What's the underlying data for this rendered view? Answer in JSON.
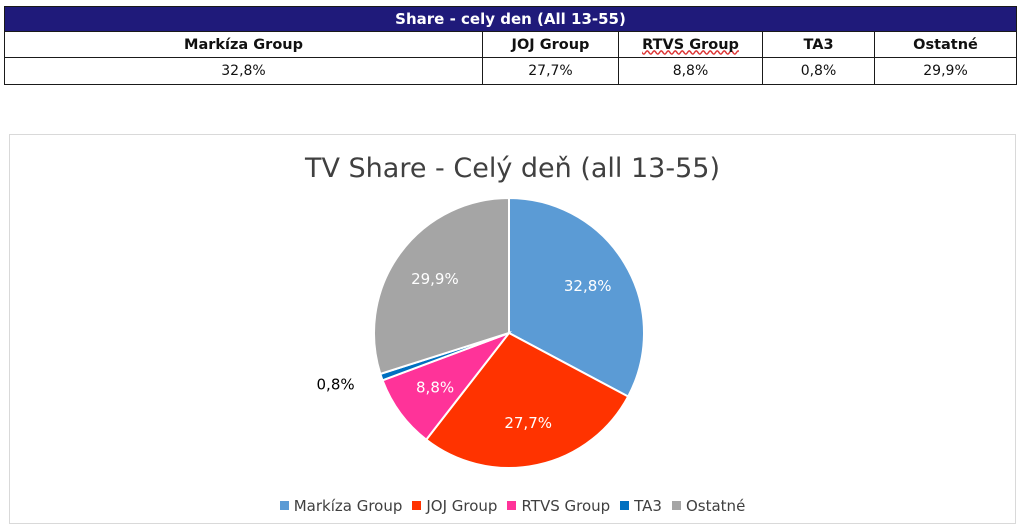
{
  "table": {
    "title": "Share - cely den (All 13-55)",
    "title_color": "#1f1a7a",
    "headers": [
      "Markíza Group",
      "JOJ Group",
      "RTVS Group",
      "TA3",
      "Ostatné"
    ],
    "values": [
      "32,8%",
      "27,7%",
      "8,8%",
      "0,8%",
      "29,9%"
    ]
  },
  "chart_data": {
    "type": "pie",
    "title": "TV Share - Celý deň (all 13-55)",
    "categories": [
      "Markíza Group",
      "JOJ Group",
      "RTVS Group",
      "TA3",
      "Ostatné"
    ],
    "values": [
      32.8,
      27.7,
      8.8,
      0.8,
      29.9
    ],
    "labels": [
      "32,8%",
      "27,7%",
      "8,8%",
      "0,8%",
      "29,9%"
    ],
    "colors": [
      "#5b9bd5",
      "#ff3300",
      "#ff3399",
      "#0070c0",
      "#a5a5a5"
    ],
    "legend_position": "bottom"
  }
}
